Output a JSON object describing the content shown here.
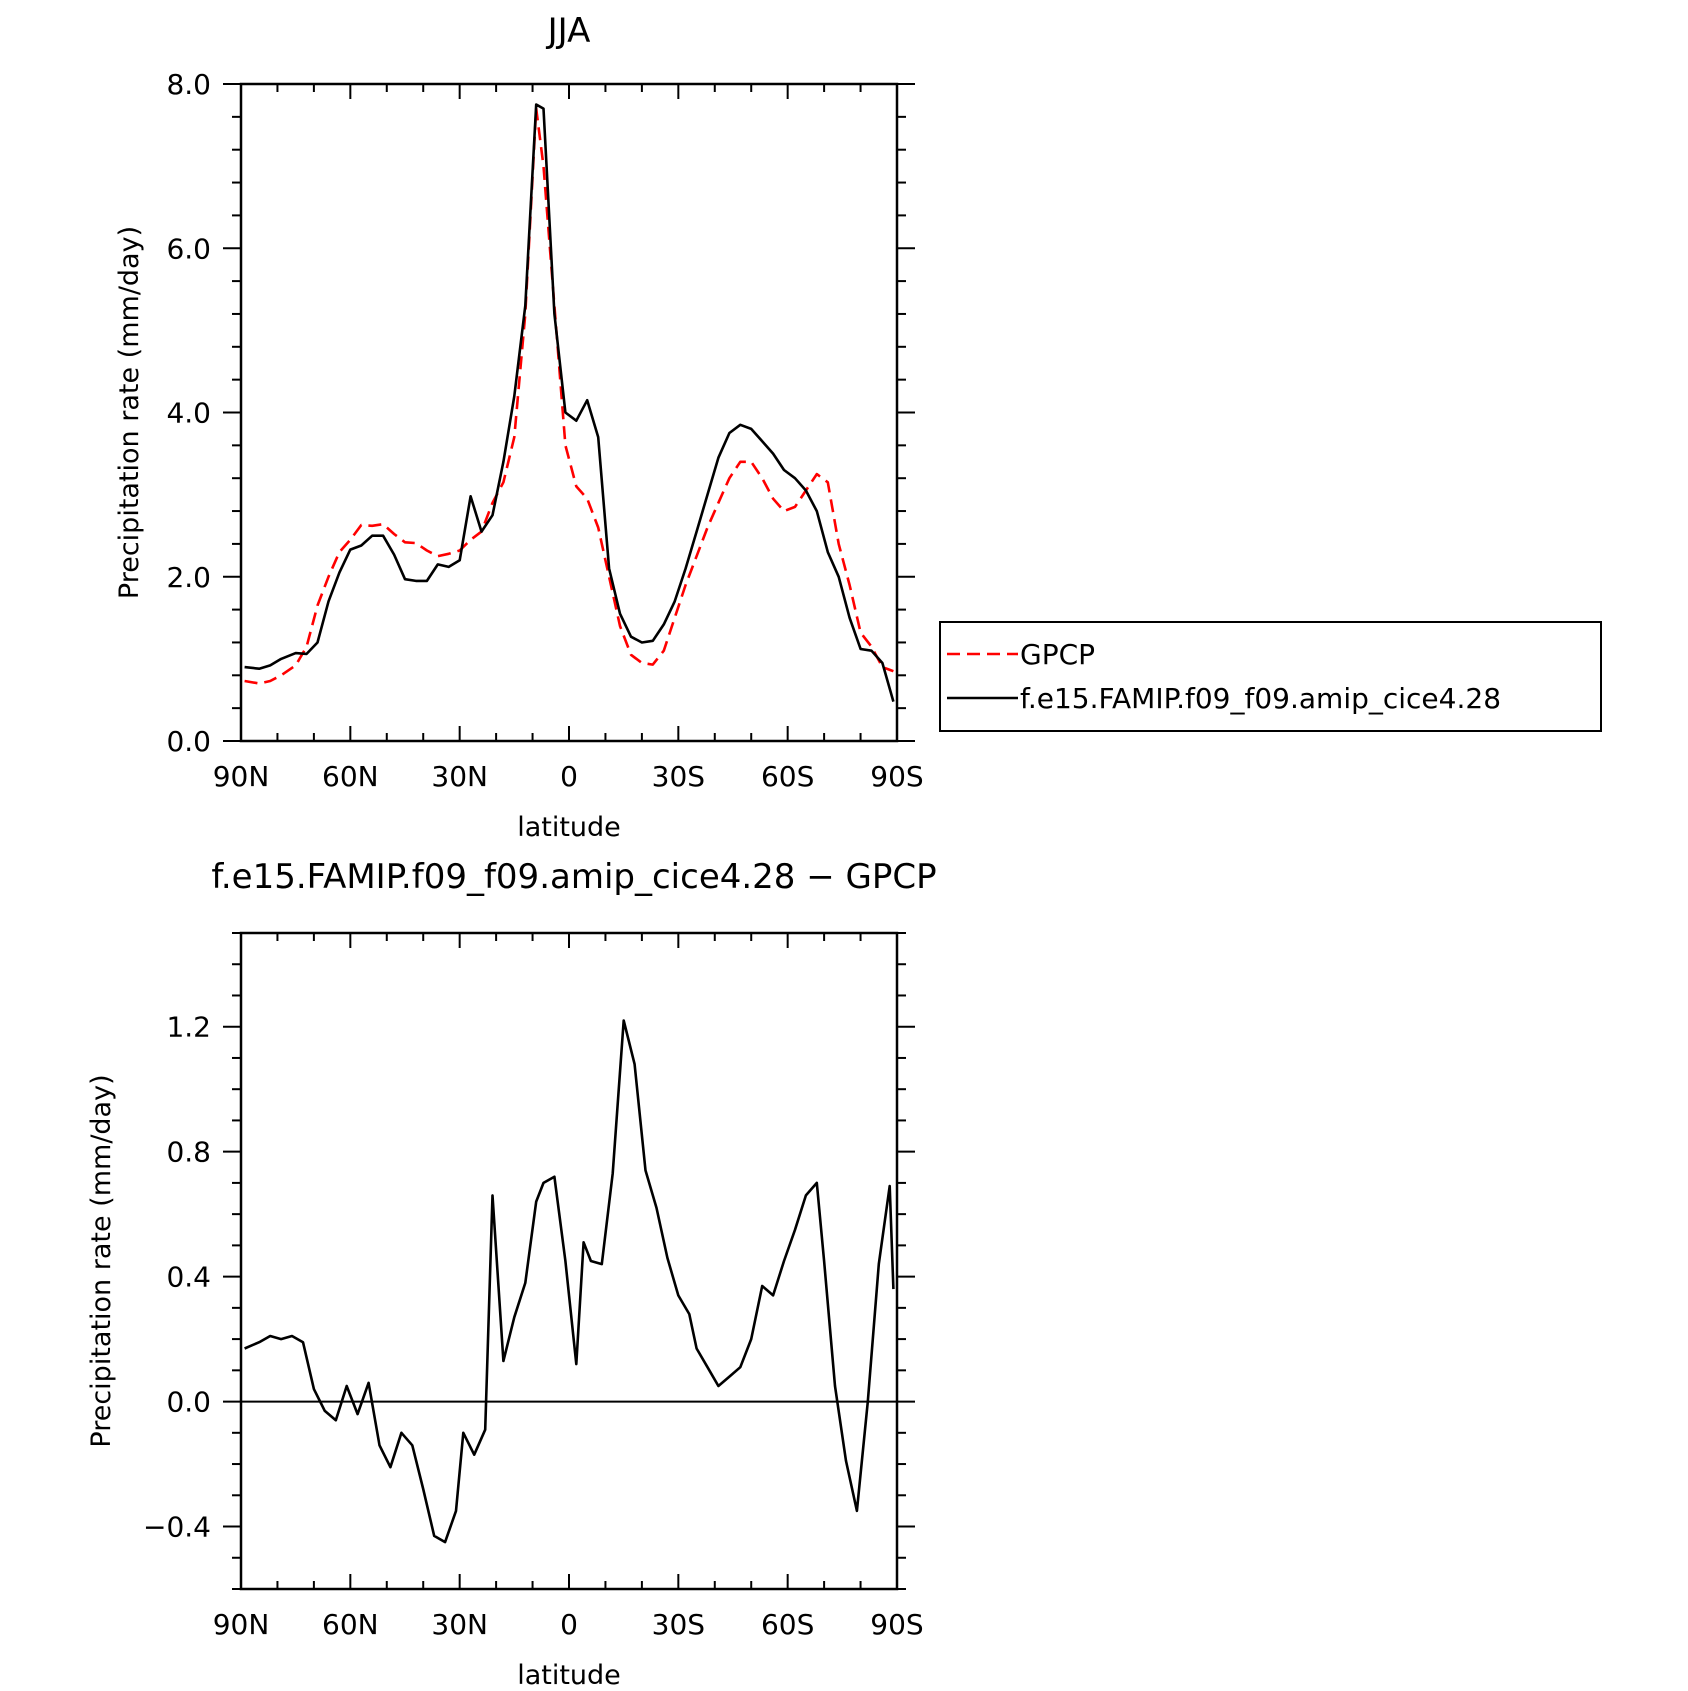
{
  "chart_data": [
    {
      "type": "line",
      "title": "JJA",
      "xlabel": "latitude",
      "ylabel": "Precipitation rate (mm/day)",
      "xlim": [
        90,
        -90
      ],
      "ylim": [
        0,
        8
      ],
      "x_ticks": [
        {
          "value": 90,
          "label": "90N"
        },
        {
          "value": 60,
          "label": "60N"
        },
        {
          "value": 30,
          "label": "30N"
        },
        {
          "value": 0,
          "label": "0"
        },
        {
          "value": -30,
          "label": "30S"
        },
        {
          "value": -60,
          "label": "60S"
        },
        {
          "value": -90,
          "label": "90S"
        }
      ],
      "y_ticks": [
        {
          "value": 0,
          "label": "0.0"
        },
        {
          "value": 2,
          "label": "2.0"
        },
        {
          "value": 4,
          "label": "4.0"
        },
        {
          "value": 6,
          "label": "6.0"
        },
        {
          "value": 8,
          "label": "8.0"
        }
      ],
      "legend_position": "right",
      "series": [
        {
          "name": "GPCP",
          "color": "#ff0000",
          "dash": true,
          "x": [
            89,
            85,
            82,
            79,
            75,
            72,
            69,
            66,
            63,
            60,
            57,
            54,
            51,
            48,
            45,
            42,
            39,
            36,
            33,
            30,
            27,
            24,
            21,
            18,
            15,
            12,
            9,
            7,
            4,
            1,
            -2,
            -5,
            -8,
            -11,
            -14,
            -17,
            -20,
            -23,
            -26,
            -29,
            -32,
            -35,
            -38,
            -41,
            -44,
            -47,
            -50,
            -53,
            -56,
            -59,
            -62,
            -65,
            -68,
            -71,
            -74,
            -77,
            -80,
            -83,
            -86,
            -89
          ],
          "y": [
            0.73,
            0.7,
            0.73,
            0.8,
            0.92,
            1.15,
            1.65,
            2.0,
            2.3,
            2.45,
            2.63,
            2.62,
            2.64,
            2.52,
            2.42,
            2.41,
            2.32,
            2.25,
            2.28,
            2.32,
            2.45,
            2.55,
            2.9,
            3.15,
            3.7,
            5.2,
            7.7,
            7.0,
            5.3,
            3.6,
            3.1,
            2.95,
            2.6,
            2.0,
            1.4,
            1.05,
            0.95,
            0.93,
            1.1,
            1.5,
            1.9,
            2.25,
            2.6,
            2.9,
            3.2,
            3.4,
            3.4,
            3.2,
            2.95,
            2.8,
            2.85,
            3.05,
            3.25,
            3.15,
            2.4,
            1.9,
            1.32,
            1.15,
            0.9,
            0.85
          ]
        },
        {
          "name": "f.e15.FAMIP.f09_f09.amip_cice4.28",
          "color": "#000000",
          "dash": false,
          "x": [
            89,
            85,
            82,
            79,
            75,
            72,
            69,
            66,
            63,
            60,
            57,
            54,
            51,
            48,
            45,
            42,
            39,
            36,
            33,
            30,
            27,
            24,
            21,
            18,
            15,
            12,
            9,
            7,
            4,
            1,
            -2,
            -5,
            -8,
            -11,
            -14,
            -17,
            -20,
            -23,
            -26,
            -29,
            -32,
            -35,
            -38,
            -41,
            -44,
            -47,
            -50,
            -53,
            -56,
            -59,
            -62,
            -65,
            -68,
            -71,
            -74,
            -77,
            -80,
            -83,
            -86,
            -89
          ],
          "y": [
            0.9,
            0.88,
            0.92,
            1.0,
            1.07,
            1.06,
            1.2,
            1.7,
            2.05,
            2.33,
            2.38,
            2.5,
            2.5,
            2.27,
            1.97,
            1.95,
            1.95,
            2.15,
            2.12,
            2.2,
            2.98,
            2.55,
            2.75,
            3.4,
            4.2,
            5.3,
            7.75,
            7.7,
            5.2,
            4.0,
            3.9,
            4.15,
            3.7,
            2.1,
            1.55,
            1.27,
            1.2,
            1.22,
            1.42,
            1.7,
            2.1,
            2.55,
            3.0,
            3.45,
            3.75,
            3.85,
            3.8,
            3.65,
            3.5,
            3.3,
            3.2,
            3.05,
            2.8,
            2.3,
            2.0,
            1.5,
            1.12,
            1.1,
            0.95,
            0.48
          ]
        }
      ]
    },
    {
      "type": "line",
      "title": "f.e15.FAMIP.f09_f09.amip_cice4.28 − GPCP",
      "xlabel": "latitude",
      "ylabel": "Precipitation rate (mm/day)",
      "xlim": [
        90,
        -90
      ],
      "ylim": [
        -0.6,
        1.5
      ],
      "x_ticks": [
        {
          "value": 90,
          "label": "90N"
        },
        {
          "value": 60,
          "label": "60N"
        },
        {
          "value": 30,
          "label": "30N"
        },
        {
          "value": 0,
          "label": "0"
        },
        {
          "value": -30,
          "label": "30S"
        },
        {
          "value": -60,
          "label": "60S"
        },
        {
          "value": -90,
          "label": "90S"
        }
      ],
      "y_ticks": [
        {
          "value": -0.4,
          "label": "−0.4"
        },
        {
          "value": 0.0,
          "label": "0.0"
        },
        {
          "value": 0.4,
          "label": "0.4"
        },
        {
          "value": 0.8,
          "label": "0.8"
        },
        {
          "value": 1.2,
          "label": "1.2"
        }
      ],
      "series": [
        {
          "color": "#000000",
          "dash": false,
          "x": [
            89,
            85,
            82,
            79,
            76,
            73,
            70,
            67,
            64,
            61,
            58,
            55,
            52,
            49,
            46,
            43,
            40,
            37,
            34,
            31,
            29,
            26,
            23,
            21,
            18,
            15,
            12,
            9,
            7,
            4,
            1,
            -2,
            -4,
            -6,
            -9,
            -12,
            -15,
            -18,
            -21,
            -24,
            -27,
            -30,
            -33,
            -35,
            -38,
            -41,
            -44,
            -47,
            -50,
            -53,
            -56,
            -59,
            -62,
            -65,
            -68,
            -70,
            -73,
            -76,
            -79,
            -82,
            -85,
            -88,
            -89
          ],
          "y": [
            0.17,
            0.19,
            0.21,
            0.2,
            0.21,
            0.19,
            0.04,
            -0.03,
            -0.06,
            0.05,
            -0.04,
            0.06,
            -0.14,
            -0.21,
            -0.1,
            -0.14,
            -0.28,
            -0.43,
            -0.45,
            -0.35,
            -0.1,
            -0.17,
            -0.09,
            0.66,
            0.13,
            0.27,
            0.38,
            0.64,
            0.7,
            0.72,
            0.45,
            0.12,
            0.51,
            0.45,
            0.44,
            0.73,
            1.22,
            1.08,
            0.74,
            0.62,
            0.46,
            0.34,
            0.28,
            0.17,
            0.11,
            0.05,
            0.08,
            0.11,
            0.2,
            0.37,
            0.34,
            0.45,
            0.55,
            0.66,
            0.7,
            0.45,
            0.05,
            -0.19,
            -0.35,
            0.0,
            0.44,
            0.69,
            0.36
          ]
        }
      ]
    }
  ]
}
